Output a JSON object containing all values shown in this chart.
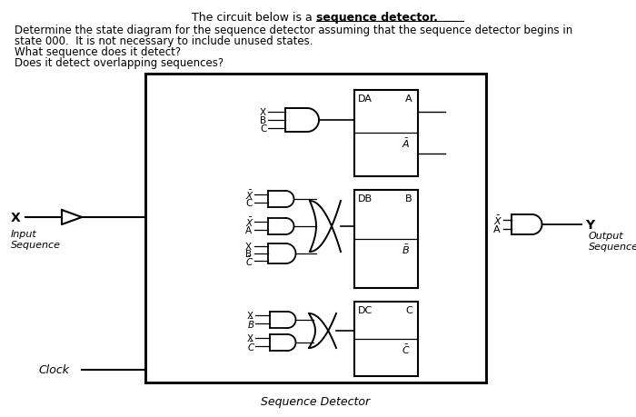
{
  "line1_pre": "The circuit below is a ",
  "line1_bold": "sequence detector",
  "line1_post": ".",
  "line2": "Determine the state diagram for the sequence detector assuming that the sequence detector begins in",
  "line3": "state 000.  It is not necessary to include unused states.",
  "line4": "What sequence does it detect?",
  "line5": "Does it detect overlapping sequences?",
  "bottom_label": "Sequence Detector",
  "left_label_line1": "Input",
  "left_label_line2": "Sequence",
  "right_label_line1": "Output",
  "right_label_line2": "Sequence",
  "clock_label": "Clock",
  "x_input_label": "X",
  "y_output_label": "Y",
  "bg_color": "#ffffff",
  "text_color": "#000000",
  "fig_width": 7.0,
  "fig_height": 4.6,
  "dpi": 100
}
